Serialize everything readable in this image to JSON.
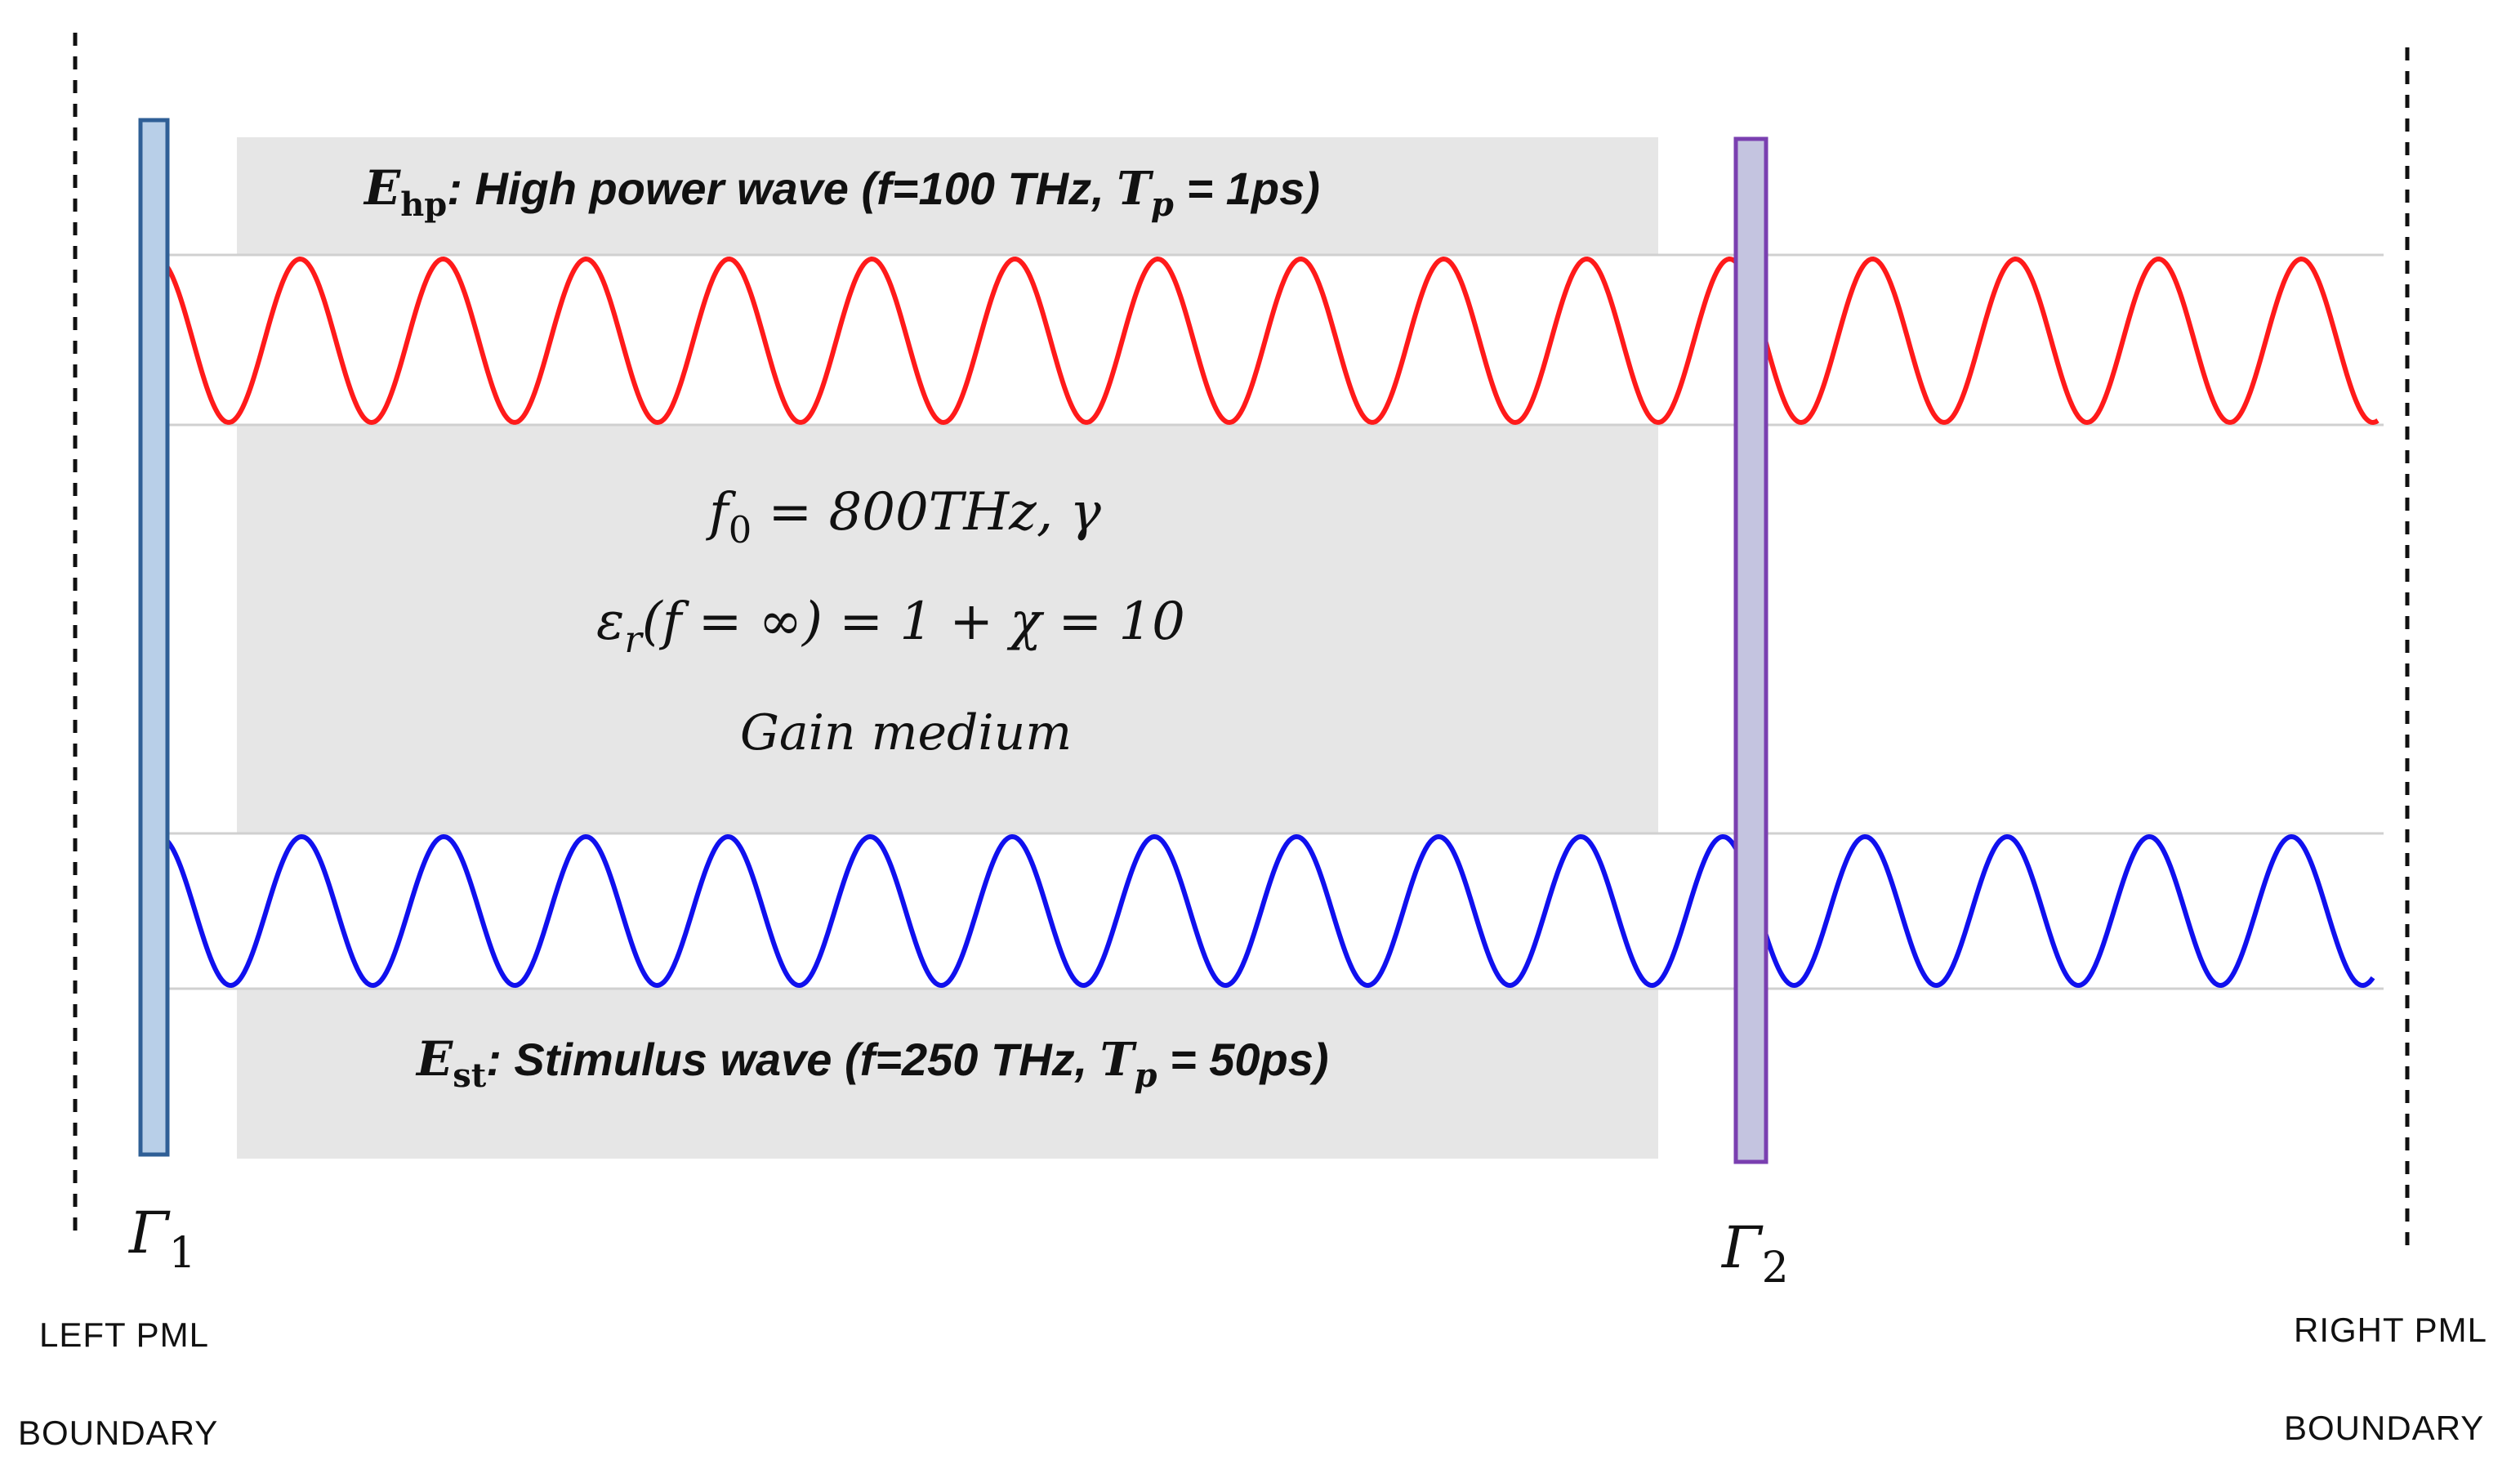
{
  "colors": {
    "medium": "#e6e6e6",
    "high_power_wave": "#ff1a1a",
    "stimulus_wave": "#1010ee",
    "mirror1_fill": "#b8cfe8",
    "mirror1_stroke": "#2f5f96",
    "mirror2_fill": "#c4c4e0",
    "mirror2_stroke": "#7a3fb0"
  },
  "high_power": {
    "symbol": "E",
    "subscript": "hp",
    "text_before": ": High power wave (f=100 THz, ",
    "tp_symbol": "T",
    "tp_sub": "p",
    "text_after": " = 1ps)"
  },
  "stimulus": {
    "symbol": "E",
    "subscript": "st",
    "text_before": ": Stimulus wave (f=250 THz, ",
    "tp_symbol": "T",
    "tp_sub": "p",
    "text_after": " = 50ps)"
  },
  "medium": {
    "line1_symbol": "f",
    "line1_sub": "0",
    "line1_rest": " = 800THz,  γ",
    "line2_symbol": "ε",
    "line2_sub": "r",
    "line2_rest": "(f = ∞) = 1 + χ = 10",
    "line3": "Gain medium"
  },
  "mirrors": {
    "gamma1_symbol": "Γ",
    "gamma1_sub": "1",
    "gamma2_symbol": "Γ",
    "gamma2_sub": "2"
  },
  "boundaries": {
    "left_line1": "LEFT PML",
    "left_line2": "BOUNDARY",
    "right_line1": "RIGHT PML",
    "right_line2": "BOUNDARY"
  }
}
